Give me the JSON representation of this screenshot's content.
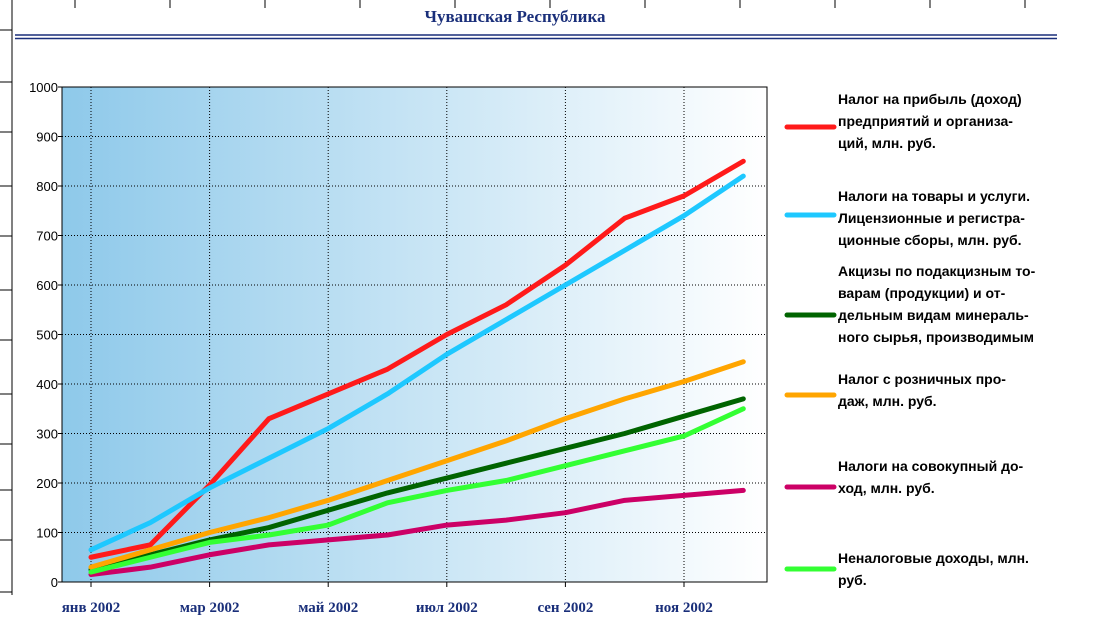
{
  "chart_data": {
    "type": "line",
    "title": "Чувашская Республика",
    "categories": [
      "янв 2002",
      null,
      "мар 2002",
      null,
      "май 2002",
      null,
      "июл 2002",
      null,
      "сен 2002",
      null,
      "ноя 2002",
      null
    ],
    "ylim": [
      0,
      1000
    ],
    "yticks": [
      0,
      100,
      200,
      300,
      400,
      500,
      600,
      700,
      800,
      900,
      1000
    ],
    "grid": true,
    "series": [
      {
        "name": "Налог на прибыль (доход)\nпредприятий и организа-\nций, млн. руб.",
        "color": "#ff1a1a",
        "values": [
          50,
          75,
          196,
          330,
          380,
          430,
          500,
          560,
          640,
          735,
          780,
          850
        ]
      },
      {
        "name": "Налоги на товары и услуги.\nЛицензионные и регистра-\nционные сборы, млн. руб.",
        "color": "#1ec8ff",
        "values": [
          65,
          120,
          190,
          250,
          310,
          380,
          460,
          530,
          600,
          670,
          740,
          820
        ]
      },
      {
        "name": "Акцизы по подакцизным то-\nварам (продукции) и от-\nдельным видам минераль-\nного сырья, производимым",
        "color": "#006400",
        "values": [
          25,
          55,
          85,
          110,
          145,
          180,
          210,
          240,
          270,
          300,
          335,
          370
        ]
      },
      {
        "name": "Налог с розничных про-\nдаж, млн. руб.",
        "color": "#ffa500",
        "values": [
          30,
          65,
          100,
          130,
          165,
          205,
          245,
          285,
          330,
          370,
          405,
          445
        ]
      },
      {
        "name": "Налоги на совокупный до-\nход, млн. руб.",
        "color": "#cc0066",
        "values": [
          15,
          30,
          55,
          75,
          85,
          95,
          115,
          125,
          140,
          165,
          175,
          185
        ]
      },
      {
        "name": "Неналоговые доходы, млн.\nруб.",
        "color": "#33ff33",
        "values": [
          20,
          50,
          80,
          95,
          115,
          160,
          185,
          205,
          235,
          265,
          295,
          350
        ]
      }
    ]
  }
}
